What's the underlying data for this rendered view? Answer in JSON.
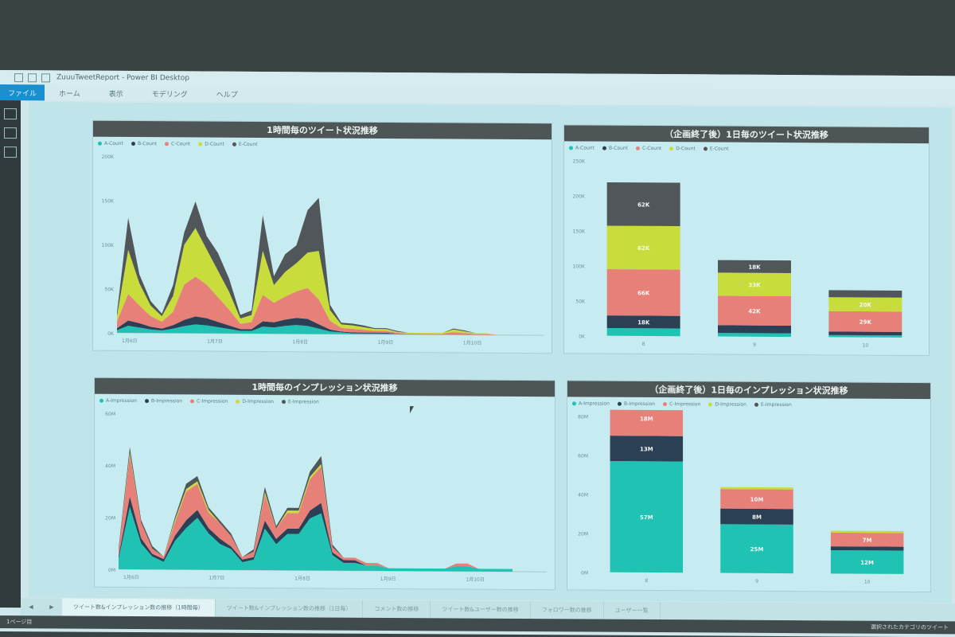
{
  "window": {
    "title": "ZuuuTweetReport - Power BI Desktop"
  },
  "ribbon": {
    "tabs": [
      "ファイル",
      "ホーム",
      "表示",
      "モデリング",
      "ヘルプ"
    ]
  },
  "colors": {
    "teal": "#1fc2b3",
    "navy": "#2b3f55",
    "salmon": "#e8807a",
    "yellow": "#c8dc3c",
    "darkgray": "#505659",
    "header": "#4d5557"
  },
  "cards": {
    "tweet_hourly": {
      "title": "1時間毎のツイート状況推移",
      "legend": [
        {
          "label": "A-Count",
          "color": "#1fc2b3"
        },
        {
          "label": "B-Count",
          "color": "#2b3f55"
        },
        {
          "label": "C-Count",
          "color": "#e8807a"
        },
        {
          "label": "D-Count",
          "color": "#c8dc3c"
        },
        {
          "label": "E-Count",
          "color": "#505659"
        }
      ]
    },
    "tweet_daily": {
      "title": "（企画終了後）1日毎のツイート状況推移",
      "legend": [
        {
          "label": "A-Count",
          "color": "#1fc2b3"
        },
        {
          "label": "B-Count",
          "color": "#2b3f55"
        },
        {
          "label": "C-Count",
          "color": "#e8807a"
        },
        {
          "label": "D-Count",
          "color": "#c8dc3c"
        },
        {
          "label": "E-Count",
          "color": "#505659"
        }
      ]
    },
    "imp_hourly": {
      "title": "1時間毎のインプレッション状況推移",
      "legend": [
        {
          "label": "A-Impression",
          "color": "#1fc2b3"
        },
        {
          "label": "B-Impression",
          "color": "#2b3f55"
        },
        {
          "label": "C-Impression",
          "color": "#e8807a"
        },
        {
          "label": "D-Impression",
          "color": "#c8dc3c"
        },
        {
          "label": "E-Impression",
          "color": "#505659"
        }
      ]
    },
    "imp_daily": {
      "title": "（企画終了後）1日毎のインプレッション状況推移",
      "legend": [
        {
          "label": "A-Impression",
          "color": "#1fc2b3"
        },
        {
          "label": "B-Impression",
          "color": "#2b3f55"
        },
        {
          "label": "C-Impression",
          "color": "#e8807a"
        },
        {
          "label": "D-Impression",
          "color": "#c8dc3c"
        },
        {
          "label": "E-Impression",
          "color": "#505659"
        }
      ]
    }
  },
  "chart_data": [
    {
      "type": "area",
      "title": "1時間毎のツイート状況推移",
      "ylim": [
        0,
        200
      ],
      "yticks": [
        "0K",
        "50K",
        "100K",
        "150K",
        "200K"
      ],
      "xticks": [
        "1月6日",
        "1月7日",
        "1月8日",
        "1月9日",
        "1月10日"
      ],
      "series": [
        {
          "name": "A-Count",
          "values": [
            3,
            8,
            6,
            4,
            3,
            5,
            8,
            10,
            9,
            7,
            5,
            3,
            3,
            8,
            7,
            9,
            10,
            9,
            6,
            3,
            2,
            1,
            1,
            1,
            1,
            1,
            0,
            0,
            0,
            0,
            0,
            0,
            0,
            0,
            0,
            0
          ]
        },
        {
          "name": "B-Count",
          "values": [
            2,
            6,
            5,
            3,
            2,
            4,
            7,
            9,
            8,
            6,
            4,
            2,
            2,
            6,
            6,
            7,
            8,
            8,
            5,
            2,
            1,
            1,
            1,
            1,
            1,
            0,
            0,
            0,
            0,
            0,
            0,
            0,
            0,
            0,
            0,
            0
          ]
        },
        {
          "name": "C-Count",
          "values": [
            8,
            30,
            20,
            12,
            8,
            15,
            40,
            45,
            38,
            28,
            18,
            6,
            8,
            30,
            22,
            26,
            30,
            35,
            28,
            10,
            4,
            4,
            3,
            2,
            2,
            1,
            1,
            1,
            1,
            1,
            3,
            2,
            1,
            1,
            0,
            0
          ]
        },
        {
          "name": "D-Count",
          "values": [
            6,
            50,
            25,
            12,
            6,
            18,
            45,
            55,
            40,
            30,
            20,
            6,
            8,
            50,
            20,
            28,
            32,
            40,
            55,
            12,
            4,
            4,
            3,
            2,
            2,
            1,
            1,
            1,
            1,
            1,
            3,
            2,
            1,
            1,
            0,
            0
          ]
        },
        {
          "name": "E-Count",
          "values": [
            4,
            36,
            10,
            5,
            3,
            12,
            14,
            30,
            15,
            20,
            15,
            4,
            5,
            40,
            10,
            20,
            20,
            48,
            60,
            6,
            2,
            2,
            2,
            1,
            1,
            1,
            0,
            0,
            0,
            0,
            1,
            1,
            0,
            0,
            0,
            0
          ]
        }
      ]
    },
    {
      "type": "bar",
      "title": "（企画終了後）1日毎のツイート状況推移",
      "categories": [
        "8",
        "9",
        "10"
      ],
      "ylim": [
        0,
        250
      ],
      "yticks": [
        "0K",
        "50K",
        "100K",
        "150K",
        "200K",
        "250K"
      ],
      "series": [
        {
          "name": "A-Count",
          "values": [
            11,
            5,
            3
          ],
          "labels": [
            "11K",
            "",
            ""
          ]
        },
        {
          "name": "B-Count",
          "values": [
            18,
            11,
            5
          ],
          "labels": [
            "18K",
            "11K",
            ""
          ]
        },
        {
          "name": "C-Count",
          "values": [
            66,
            42,
            29
          ],
          "labels": [
            "66K",
            "42K",
            "29K"
          ]
        },
        {
          "name": "D-Count",
          "values": [
            62,
            33,
            20
          ],
          "labels": [
            "62K",
            "33K",
            "20K"
          ]
        },
        {
          "name": "E-Count",
          "values": [
            62,
            18,
            10
          ],
          "labels": [
            "62K",
            "18K",
            ""
          ]
        }
      ]
    },
    {
      "type": "area",
      "title": "1時間毎のインプレッション状況推移",
      "ylim": [
        0,
        60
      ],
      "yticks": [
        "0M",
        "20M",
        "40M",
        "60M"
      ],
      "xticks": [
        "1月6日",
        "1月7日",
        "1月8日",
        "1月9日",
        "1月10日"
      ],
      "series": [
        {
          "name": "A-Impression",
          "values": [
            4,
            24,
            10,
            5,
            3,
            11,
            16,
            20,
            14,
            10,
            8,
            3,
            4,
            16,
            10,
            14,
            14,
            20,
            22,
            6,
            3,
            3,
            2,
            2,
            1,
            1,
            1,
            1,
            1,
            1,
            2,
            2,
            1,
            1,
            1,
            1
          ]
        },
        {
          "name": "B-Impression",
          "values": [
            1,
            4,
            2,
            1,
            1,
            2,
            3,
            3,
            2,
            2,
            1,
            1,
            1,
            3,
            2,
            2,
            2,
            3,
            4,
            1,
            1,
            1,
            0,
            0,
            0,
            0,
            0,
            0,
            0,
            0,
            0,
            0,
            0,
            0,
            0,
            0
          ]
        },
        {
          "name": "C-Impression",
          "values": [
            2,
            16,
            6,
            2,
            1,
            5,
            11,
            10,
            6,
            6,
            4,
            1,
            2,
            10,
            4,
            6,
            6,
            12,
            14,
            2,
            1,
            1,
            1,
            1,
            0,
            0,
            0,
            0,
            0,
            0,
            1,
            1,
            0,
            0,
            0,
            0
          ]
        },
        {
          "name": "D-Impression",
          "values": [
            0,
            1,
            0,
            0,
            0,
            1,
            1,
            1,
            1,
            0,
            0,
            0,
            0,
            1,
            0,
            1,
            1,
            1,
            1,
            0,
            0,
            0,
            0,
            0,
            0,
            0,
            0,
            0,
            0,
            0,
            0,
            0,
            0,
            0,
            0,
            0
          ]
        },
        {
          "name": "E-Impression",
          "values": [
            1,
            2,
            1,
            1,
            0,
            1,
            2,
            2,
            1,
            1,
            1,
            0,
            1,
            2,
            1,
            1,
            1,
            2,
            3,
            1,
            0,
            0,
            0,
            0,
            0,
            0,
            0,
            0,
            0,
            0,
            0,
            0,
            0,
            0,
            0,
            0
          ]
        }
      ]
    },
    {
      "type": "bar",
      "title": "（企画終了後）1日毎のインプレッション状況推移",
      "categories": [
        "8",
        "9",
        "10"
      ],
      "ylim": [
        0,
        80
      ],
      "yticks": [
        "0M",
        "20M",
        "40M",
        "60M",
        "80M"
      ],
      "series": [
        {
          "name": "A-Impression",
          "values": [
            57,
            25,
            12
          ],
          "labels": [
            "57M",
            "25M",
            "12M"
          ]
        },
        {
          "name": "B-Impression",
          "values": [
            13,
            8,
            2
          ],
          "labels": [
            "13M",
            "8M",
            ""
          ]
        },
        {
          "name": "C-Impression",
          "values": [
            18,
            10,
            7
          ],
          "labels": [
            "18M",
            "10M",
            "7M"
          ]
        },
        {
          "name": "D-Impression",
          "values": [
            2,
            1,
            1
          ],
          "labels": [
            "",
            "",
            ""
          ]
        },
        {
          "name": "E-Impression",
          "values": [
            1,
            0,
            0
          ],
          "labels": [
            "",
            "",
            ""
          ]
        }
      ]
    }
  ],
  "page_tabs": [
    "ツイート数&インプレッション数の推移（1時間毎）",
    "ツイート数&インプレッション数の推移（1日毎）",
    "コメント数の推移",
    "ツイート数&ユーザー数の推移",
    "フォロワー数の推移",
    "ユーザー一覧"
  ],
  "status": {
    "left": "1ページ目",
    "right": "選択されたカテゴリのツイート"
  }
}
